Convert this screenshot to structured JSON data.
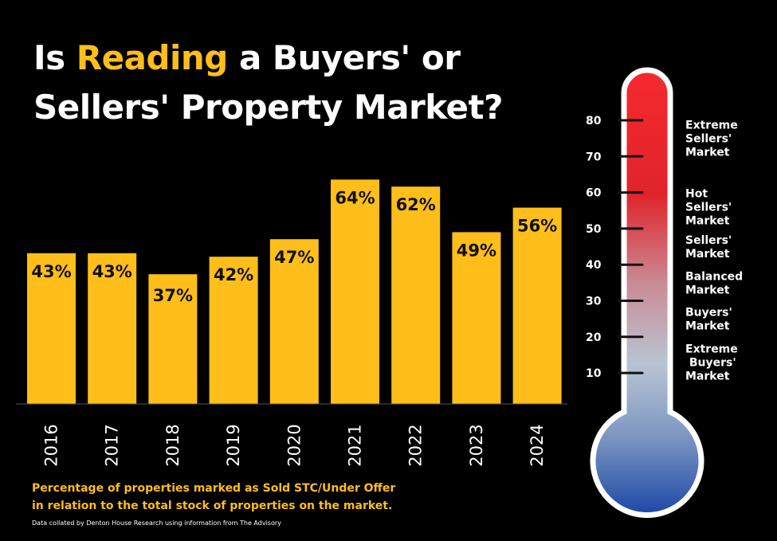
{
  "title": {
    "part1": "Is ",
    "highlight": "Reading",
    "part2": " a Buyers' or",
    "line2": "Sellers' Property Market?"
  },
  "colors": {
    "background": "#000000",
    "accent": "#FFBE1A",
    "bar": "#FFBE1A",
    "thermo_hot": "#F0232A",
    "thermo_mid": "#B8C3D2",
    "thermo_cold": "#1E4AA8"
  },
  "chart_data": {
    "type": "bar",
    "categories": [
      "2016",
      "2017",
      "2018",
      "2019",
      "2020",
      "2021",
      "2022",
      "2023",
      "2024"
    ],
    "values": [
      43,
      43,
      37,
      42,
      47,
      64,
      62,
      49,
      56
    ],
    "data_labels": [
      "43%",
      "43%",
      "37%",
      "42%",
      "47%",
      "64%",
      "62%",
      "49%",
      "56%"
    ],
    "unit": "%",
    "title": "",
    "xlabel": "",
    "ylabel": "",
    "ylim": [
      0,
      100
    ],
    "grid": false,
    "legend": "none"
  },
  "thermometer": {
    "scale": [
      80,
      70,
      60,
      50,
      40,
      30,
      20,
      10
    ],
    "zones": [
      {
        "lines": [
          "Extreme",
          "Sellers'",
          "Market"
        ],
        "level": 75
      },
      {
        "lines": [
          "Hot",
          "Sellers'",
          "Market"
        ],
        "level": 56
      },
      {
        "lines": [
          "Sellers'",
          "Market"
        ],
        "level": 45
      },
      {
        "lines": [
          "Balanced",
          "Market"
        ],
        "level": 35
      },
      {
        "lines": [
          "Buyers'",
          "Market"
        ],
        "level": 25
      },
      {
        "lines": [
          "Extreme",
          " Buyers'",
          "Market"
        ],
        "level": 13
      }
    ]
  },
  "caption": {
    "line1": "Percentage of properties marked as Sold STC/Under Offer",
    "line2": "in relation to the total stock of properties on the market."
  },
  "source": "Data collated by Denton House Research using information from The Advisory"
}
